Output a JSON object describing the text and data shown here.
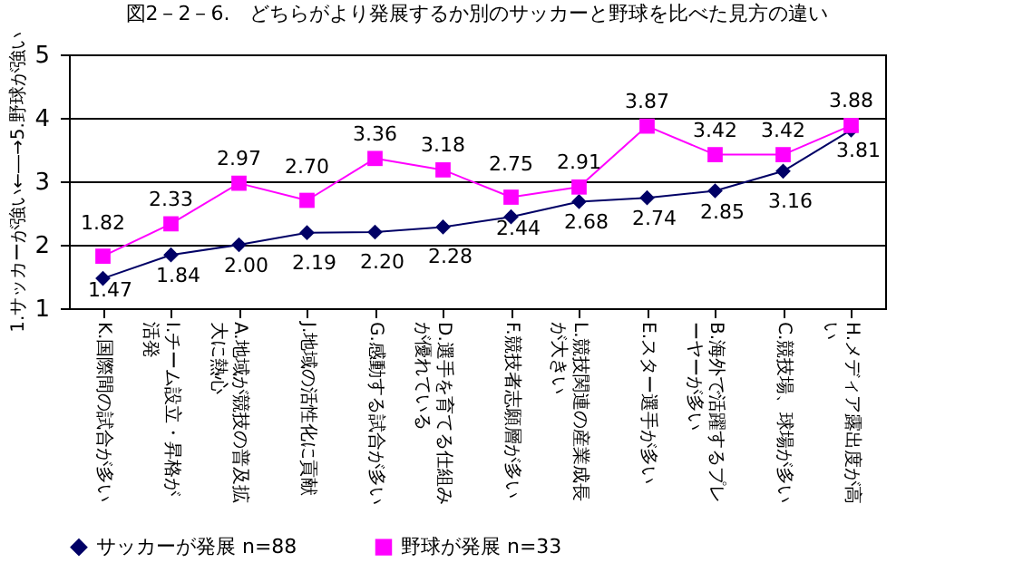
{
  "chart_data": {
    "type": "line",
    "title": "図2－2－6.　どちらがより発展するか別のサッカーと野球を比べた見方の違い",
    "ylabel": "1.サッカーが強い←―→5.野球が強い",
    "categories": [
      "K.国際間の試合が多い",
      "I.チーム設立・昇格が活発",
      "A.地域が競技の普及拡大に熱心",
      "J.地域の活性化に貢献",
      "G.感動する試合が多い",
      "D.選手を育てる仕組みが優れている",
      "F.競技者志願層が多い",
      "L.競技関連の産業成長が大きい",
      "E.スター選手が多い",
      "B.海外で活躍するプレーヤーが多い",
      "C.競技場、球場が多い",
      "H.メディア露出度が高い"
    ],
    "series": [
      {
        "name": "サッカーが発展 n=88",
        "color": "#000066",
        "marker": "diamond",
        "values": [
          1.47,
          1.84,
          2.0,
          2.19,
          2.2,
          2.28,
          2.44,
          2.68,
          2.74,
          2.85,
          3.16,
          3.81
        ],
        "value_labels": [
          "1.47",
          "1.84",
          "2.00",
          "2.19",
          "2.20",
          "2.28",
          "2.44",
          "2.68",
          "2.74",
          "2.85",
          "3.16",
          "3.81"
        ]
      },
      {
        "name": "野球が発展 n=33",
        "color": "#ff00ff",
        "marker": "square",
        "values": [
          1.82,
          2.33,
          2.97,
          2.7,
          3.36,
          3.18,
          2.75,
          2.91,
          3.87,
          3.42,
          3.42,
          3.88
        ],
        "value_labels": [
          "1.82",
          "2.33",
          "2.97",
          "2.70",
          "3.36",
          "3.18",
          "2.75",
          "2.91",
          "3.87",
          "3.42",
          "3.42",
          "3.88"
        ]
      }
    ],
    "ylim": [
      1,
      5
    ],
    "yticks": [
      1,
      2,
      3,
      4,
      5
    ],
    "grid": "y",
    "legend": "bottom",
    "line_style": "solid"
  }
}
